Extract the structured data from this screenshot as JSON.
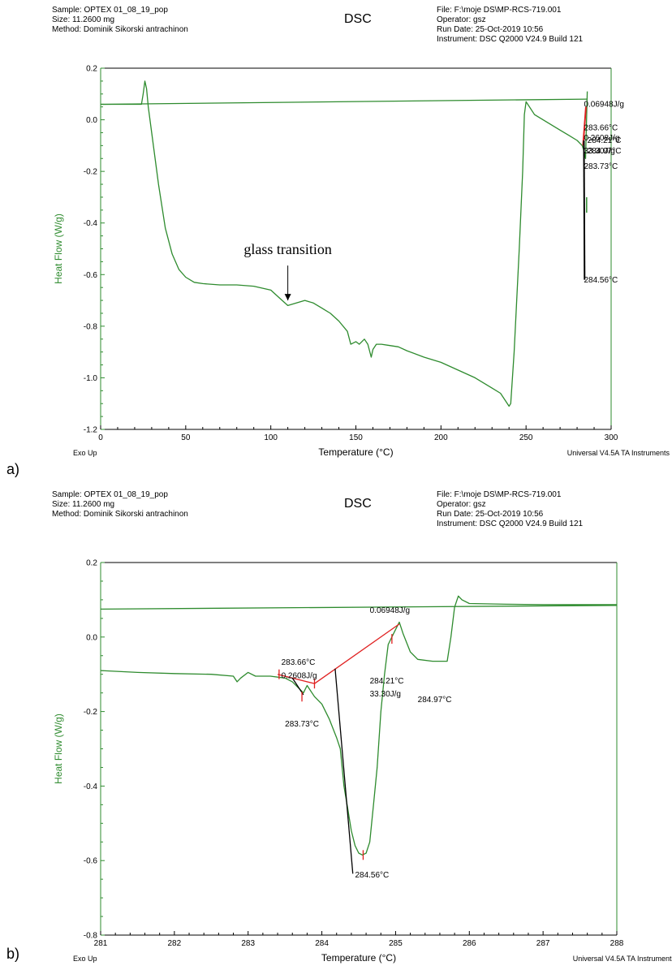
{
  "header": {
    "sample": "Sample: OPTEX 01_08_19_pop",
    "size": "Size:  11.2600 mg",
    "method": "Method: Dominik Sikorski antrachinon",
    "title": "DSC",
    "file": "File: F:\\moje DS\\MP-RCS-719.001",
    "operator": "Operator: gsz",
    "run_date": "Run Date: 25-Oct-2019 10:56",
    "instrument": "Instrument: DSC Q2000 V24.9 Build 121"
  },
  "footer": {
    "exo": "Exo Up",
    "software": "Universal V4.5A TA Instruments"
  },
  "colors": {
    "trace": "#2e8b2e",
    "construct": "#e02020",
    "tangent": "#000000",
    "axis": "#2e8b2e"
  },
  "panels": [
    {
      "label": "a)"
    },
    {
      "label": "b)"
    }
  ],
  "chart_data": [
    {
      "type": "line",
      "xlabel": "Temperature (°C)",
      "ylabel": "Heat Flow (W/g)",
      "xlim": [
        0,
        300
      ],
      "ylim": [
        -1.2,
        0.2
      ],
      "xticks": [
        0,
        50,
        100,
        150,
        200,
        250,
        300
      ],
      "yticks": [
        0.2,
        0.0,
        -0.2,
        -0.4,
        -0.6,
        -0.8,
        -1.0,
        -1.2
      ],
      "ytick_labels": [
        "0.2",
        "0.0",
        "-0.2",
        "-0.4",
        "-0.6",
        "-0.8",
        "-1.0",
        "-1.2"
      ],
      "series": [
        {
          "x": [
            0,
            20,
            24,
            25,
            26,
            27,
            28,
            30,
            34,
            38,
            42,
            46,
            50,
            55,
            60,
            70,
            80,
            90,
            100,
            105,
            110,
            115,
            120,
            125,
            130,
            135,
            140,
            145,
            147,
            150,
            152,
            155,
            157,
            159,
            160,
            162,
            165,
            170,
            175,
            180,
            190,
            200,
            210,
            220,
            230,
            235,
            238,
            240,
            241,
            243,
            246,
            248,
            249,
            250,
            255,
            260,
            265,
            270,
            275,
            280,
            283,
            284,
            285,
            286
          ],
          "y": [
            0.06,
            0.06,
            0.06,
            0.1,
            0.15,
            0.12,
            0.05,
            -0.05,
            -0.25,
            -0.42,
            -0.52,
            -0.58,
            -0.61,
            -0.63,
            -0.635,
            -0.64,
            -0.64,
            -0.645,
            -0.66,
            -0.69,
            -0.72,
            -0.71,
            -0.7,
            -0.71,
            -0.73,
            -0.75,
            -0.78,
            -0.82,
            -0.87,
            -0.86,
            -0.87,
            -0.85,
            -0.87,
            -0.92,
            -0.89,
            -0.87,
            -0.87,
            -0.875,
            -0.88,
            -0.895,
            -0.92,
            -0.94,
            -0.97,
            -1.0,
            -1.04,
            -1.06,
            -1.09,
            -1.11,
            -1.1,
            -0.9,
            -0.5,
            -0.2,
            0.02,
            0.07,
            0.02,
            0.0,
            -0.02,
            -0.04,
            -0.06,
            -0.08,
            -0.1,
            -0.12,
            -0.15,
            0.11
          ]
        },
        {
          "x": [
            0,
            286
          ],
          "y": [
            0.06,
            0.08
          ]
        }
      ],
      "annotations": [
        {
          "text": "glass transition",
          "x": 110,
          "y": -0.52
        },
        {
          "text": "0.06948J/g",
          "x": 284,
          "y": 0.05
        },
        {
          "text": "283.66°C",
          "x": 284,
          "y": -0.04
        },
        {
          "text": "0.2608J/g",
          "x": 284,
          "y": -0.08
        },
        {
          "text": "284.21°C",
          "x": 286,
          "y": -0.09
        },
        {
          "text": "33.30J/g",
          "x": 284,
          "y": -0.13
        },
        {
          "text": "284.97°C",
          "x": 286,
          "y": -0.13
        },
        {
          "text": "283.73°C",
          "x": 284,
          "y": -0.19
        },
        {
          "text": "284.56°C",
          "x": 284,
          "y": -0.63
        }
      ]
    },
    {
      "type": "line",
      "xlabel": "Temperature (°C)",
      "ylabel": "Heat Flow (W/g)",
      "xlim": [
        281,
        288
      ],
      "ylim": [
        -0.8,
        0.2
      ],
      "xticks": [
        281,
        282,
        283,
        284,
        285,
        286,
        287,
        288
      ],
      "yticks": [
        0.2,
        0.0,
        -0.2,
        -0.4,
        -0.6,
        -0.8
      ],
      "ytick_labels": [
        "0.2",
        "0.0",
        "-0.2",
        "-0.4",
        "-0.6",
        "-0.8"
      ],
      "series": [
        {
          "x": [
            281.0,
            281.5,
            282.0,
            282.5,
            282.8,
            282.85,
            282.9,
            283.0,
            283.1,
            283.3,
            283.5,
            283.6,
            283.7,
            283.75,
            283.8,
            283.9,
            284.0,
            284.1,
            284.2,
            284.25,
            284.3,
            284.35,
            284.4,
            284.45,
            284.5,
            284.55,
            284.6,
            284.65,
            284.7,
            284.75,
            284.8,
            284.85,
            284.9,
            285.0,
            285.05,
            285.1,
            285.2,
            285.3,
            285.5,
            285.7,
            285.75,
            285.8,
            285.85,
            285.9,
            286.0,
            286.5,
            287.0,
            288.0
          ],
          "y": [
            -0.09,
            -0.095,
            -0.098,
            -0.1,
            -0.105,
            -0.12,
            -0.11,
            -0.095,
            -0.105,
            -0.105,
            -0.11,
            -0.12,
            -0.14,
            -0.15,
            -0.13,
            -0.16,
            -0.18,
            -0.22,
            -0.27,
            -0.3,
            -0.4,
            -0.46,
            -0.52,
            -0.56,
            -0.58,
            -0.585,
            -0.58,
            -0.55,
            -0.45,
            -0.35,
            -0.2,
            -0.1,
            -0.02,
            0.02,
            0.04,
            0.01,
            -0.04,
            -0.06,
            -0.065,
            -0.065,
            0.0,
            0.08,
            0.11,
            0.1,
            0.09,
            0.088,
            0.087,
            0.087
          ]
        },
        {
          "x": [
            281.0,
            288.0
          ],
          "y": [
            0.075,
            0.085
          ]
        }
      ],
      "annotations": [
        {
          "text": "0.06948J/g",
          "x": 284.65,
          "y": 0.065
        },
        {
          "text": "283.66°C",
          "x": 283.45,
          "y": -0.075
        },
        {
          "text": "0.2608J/g",
          "x": 283.45,
          "y": -0.11
        },
        {
          "text": "284.21°C",
          "x": 284.65,
          "y": -0.125
        },
        {
          "text": "33.30J/g",
          "x": 284.65,
          "y": -0.16
        },
        {
          "text": "284.97°C",
          "x": 285.3,
          "y": -0.175
        },
        {
          "text": "283.73°C",
          "x": 283.5,
          "y": -0.24
        },
        {
          "text": "284.56°C",
          "x": 284.45,
          "y": -0.645
        }
      ]
    }
  ]
}
